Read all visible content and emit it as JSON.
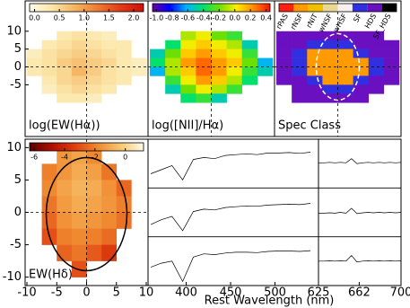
{
  "chart_data": [
    {
      "type": "heatmap",
      "title": "log(EW(Hα))",
      "x": [
        -8.75,
        -6.25,
        -3.75,
        -1.25,
        1.25,
        3.75,
        6.25,
        8.75
      ],
      "y": [
        8.75,
        6.25,
        3.75,
        1.25,
        -1.25,
        -3.75,
        -6.25,
        -8.75
      ],
      "z": [
        [
          null,
          null,
          0.3,
          0.4,
          0.3,
          0.2,
          null,
          null
        ],
        [
          null,
          0.3,
          0.4,
          0.5,
          0.4,
          0.3,
          0.3,
          null
        ],
        [
          0.2,
          0.4,
          0.5,
          0.6,
          0.5,
          0.4,
          0.3,
          null
        ],
        [
          0.3,
          0.4,
          0.6,
          0.7,
          0.6,
          0.5,
          0.3,
          0.2
        ],
        [
          0.3,
          0.4,
          0.5,
          0.8,
          0.6,
          0.4,
          0.3,
          0.2
        ],
        [
          null,
          0.3,
          0.5,
          0.6,
          0.5,
          0.4,
          0.3,
          null
        ],
        [
          null,
          0.2,
          0.4,
          0.5,
          0.4,
          0.3,
          null,
          null
        ],
        [
          null,
          null,
          0.3,
          0.3,
          0.2,
          null,
          null,
          null
        ]
      ],
      "xlim": [
        -10.3,
        10.3
      ],
      "ylim": [
        -19.5,
        18.5
      ],
      "yticks": [
        -5,
        0,
        5,
        10
      ],
      "zlim": [
        -0.1,
        2.2
      ],
      "zticks": [
        {
          "value": 0,
          "label": "0.0"
        },
        0.5,
        {
          "value": 1,
          "label": "1.0"
        },
        1.5,
        {
          "value": 2,
          "label": "2.0"
        }
      ],
      "colormap": [
        "#fffbe8",
        "#fbe6a8",
        "#f6b460",
        "#ee7a30",
        "#e03a18",
        "#d01008"
      ]
    },
    {
      "type": "heatmap",
      "title": "log([NII]/Hα)",
      "x": [
        -8.75,
        -6.25,
        -3.75,
        -1.25,
        1.25,
        3.75,
        6.25,
        8.75
      ],
      "y": [
        8.75,
        6.25,
        3.75,
        1.25,
        -1.25,
        -3.75,
        -6.25,
        -8.75
      ],
      "z": [
        [
          null,
          null,
          -0.1,
          0.0,
          -0.2,
          -0.3,
          null,
          null
        ],
        [
          null,
          -0.4,
          0.0,
          0.1,
          0.0,
          -0.1,
          -0.5,
          null
        ],
        [
          -0.5,
          -0.2,
          0.1,
          0.2,
          0.1,
          0.0,
          -0.3,
          null
        ],
        [
          -0.4,
          -0.1,
          0.2,
          0.3,
          0.2,
          0.1,
          -0.2,
          -0.6
        ],
        [
          -0.6,
          -0.1,
          0.1,
          0.3,
          0.2,
          0.0,
          -0.3,
          -0.5
        ],
        [
          null,
          -0.3,
          0.0,
          0.2,
          0.1,
          -0.1,
          -0.4,
          null
        ],
        [
          null,
          -0.5,
          -0.2,
          0.0,
          -0.1,
          -0.3,
          null,
          null
        ],
        [
          null,
          null,
          -0.4,
          -0.3,
          -0.5,
          null,
          null,
          null
        ]
      ],
      "xlim": [
        -10.3,
        10.3
      ],
      "ylim": [
        -19.5,
        18.5
      ],
      "zlim": [
        -1.05,
        0.45
      ],
      "zticks": [
        {
          "value": -1,
          "label": "-1.0"
        },
        -0.8,
        -0.6,
        -0.4,
        -0.2,
        {
          "value": 0,
          "label": "0.0"
        },
        0.2,
        0.4
      ],
      "colormap": [
        "#6a00a0",
        "#0000ff",
        "#00b0ff",
        "#00e070",
        "#70e000",
        "#ffee00",
        "#ff8c00",
        "#ff1000"
      ]
    },
    {
      "type": "classmap",
      "title": "Spec Class",
      "x": [
        -8.75,
        -6.25,
        -3.75,
        -1.25,
        1.25,
        3.75,
        6.25,
        8.75
      ],
      "y": [
        8.75,
        6.25,
        3.75,
        1.25,
        -1.25,
        -3.75,
        -6.25,
        -8.75
      ],
      "z": [
        [
          6,
          6,
          6,
          6,
          6,
          6,
          6,
          null
        ],
        [
          6,
          6,
          5,
          5,
          5,
          6,
          6,
          6
        ],
        [
          6,
          5,
          1,
          1,
          1,
          5,
          6,
          6
        ],
        [
          6,
          5,
          1,
          1,
          1,
          1,
          5,
          6
        ],
        [
          6,
          5,
          1,
          1,
          1,
          1,
          5,
          6
        ],
        [
          6,
          6,
          5,
          1,
          1,
          5,
          6,
          6
        ],
        [
          null,
          6,
          6,
          5,
          5,
          6,
          6,
          null
        ],
        [
          null,
          6,
          6,
          6,
          6,
          6,
          null,
          null
        ]
      ],
      "xlim": [
        -10.3,
        10.3
      ],
      "ylim": [
        -19.5,
        18.5
      ],
      "classes": [
        "rPAS",
        "rNSF",
        "rNIT",
        "wNSF",
        "wHSF",
        "SF",
        "HDS",
        "SF_HDS"
      ],
      "class_colors": [
        "#ff2010",
        "#ff9a00",
        "#f0c000",
        "#e8d890",
        "#f8f0f0",
        "#3030e0",
        "#6a10c0",
        "#000000"
      ]
    },
    {
      "type": "heatmap",
      "title": "EW(Hδ)",
      "x": [
        -8.75,
        -6.25,
        -3.75,
        -1.25,
        1.25,
        3.75,
        6.25,
        8.75
      ],
      "y": [
        8.75,
        6.25,
        3.75,
        1.25,
        -1.25,
        -3.75,
        -6.25,
        -8.75
      ],
      "z": [
        [
          null,
          null,
          -1.5,
          -1.2,
          -1.8,
          null,
          null,
          null
        ],
        [
          null,
          -2,
          -1.5,
          -1.0,
          -1.3,
          -2.2,
          null,
          null
        ],
        [
          null,
          -1.8,
          -1.2,
          -0.8,
          -1.0,
          -1.6,
          -2.5,
          null
        ],
        [
          null,
          -2.2,
          -1.4,
          -1.0,
          -1.2,
          -1.5,
          -2,
          null
        ],
        [
          null,
          -2.5,
          -1.6,
          -1.3,
          -1.5,
          -1.8,
          -2.3,
          null
        ],
        [
          null,
          -3,
          -2,
          -1.8,
          -2,
          -2.4,
          null,
          null
        ],
        [
          null,
          null,
          -2.6,
          -2.2,
          -2.8,
          -3.5,
          null,
          null
        ],
        [
          null,
          null,
          null,
          -3,
          null,
          null,
          null,
          null
        ]
      ],
      "xlim": [
        -10.3,
        10.3
      ],
      "ylim": [
        -11.3,
        11.3
      ],
      "xticks": [
        -10,
        -5,
        0,
        5,
        10
      ],
      "yticks": [
        -10,
        -5,
        0,
        5,
        10
      ],
      "zlim": [
        -6.3,
        1.2
      ],
      "zticks": [
        -6,
        -4,
        -2,
        0
      ],
      "colormap": [
        "#5a0000",
        "#b01000",
        "#e04010",
        "#f08a30",
        "#f8c870",
        "#fffbe8"
      ]
    },
    {
      "type": "line",
      "xlabel": "Rest Wavelength (nm)",
      "x": [
        360,
        372,
        384,
        396,
        408,
        420,
        432,
        444,
        456,
        468,
        480,
        492,
        504,
        516,
        528,
        540
      ],
      "xlim": [
        357,
        549
      ],
      "xticks": [
        400,
        450,
        500
      ],
      "ylim": [
        0,
        1.2
      ],
      "series": [
        {
          "color": "#000000",
          "values": [
            0.35,
            0.45,
            0.55,
            0.2,
            0.7,
            0.75,
            0.72,
            0.8,
            0.82,
            0.84,
            0.82,
            0.86,
            0.86,
            0.87,
            0.85,
            0.88
          ]
        },
        {
          "color": "#000000",
          "values": [
            0.3,
            0.42,
            0.5,
            0.15,
            0.62,
            0.68,
            0.66,
            0.72,
            0.74,
            0.76,
            0.75,
            0.78,
            0.79,
            0.8,
            0.79,
            0.82
          ]
        },
        {
          "color": "#000000",
          "values": [
            0.45,
            0.55,
            0.6,
            0.1,
            0.7,
            0.78,
            0.76,
            0.8,
            0.82,
            0.82,
            0.81,
            0.84,
            0.85,
            0.85,
            0.84,
            0.86
          ]
        }
      ]
    },
    {
      "type": "line",
      "x": [
        625,
        630,
        635,
        640,
        645,
        650,
        655,
        660,
        665,
        670,
        675,
        680,
        685,
        690,
        695,
        700
      ],
      "xlim": [
        625,
        700
      ],
      "xticks": [
        625,
        662,
        700
      ],
      "ylim": [
        0,
        1.2
      ],
      "series": [
        {
          "color": "#000000",
          "values": [
            0.62,
            0.62,
            0.63,
            0.62,
            0.63,
            0.62,
            0.72,
            0.6,
            0.62,
            0.63,
            0.62,
            0.63,
            0.62,
            0.63,
            0.62,
            0.63
          ]
        },
        {
          "color": "#000000",
          "values": [
            0.58,
            0.58,
            0.59,
            0.58,
            0.6,
            0.58,
            0.7,
            0.57,
            0.59,
            0.6,
            0.59,
            0.6,
            0.59,
            0.6,
            0.59,
            0.6
          ]
        },
        {
          "color": "#000000",
          "values": [
            0.6,
            0.6,
            0.61,
            0.6,
            0.61,
            0.6,
            0.74,
            0.58,
            0.6,
            0.61,
            0.6,
            0.61,
            0.6,
            0.61,
            0.6,
            0.61
          ]
        }
      ]
    }
  ]
}
